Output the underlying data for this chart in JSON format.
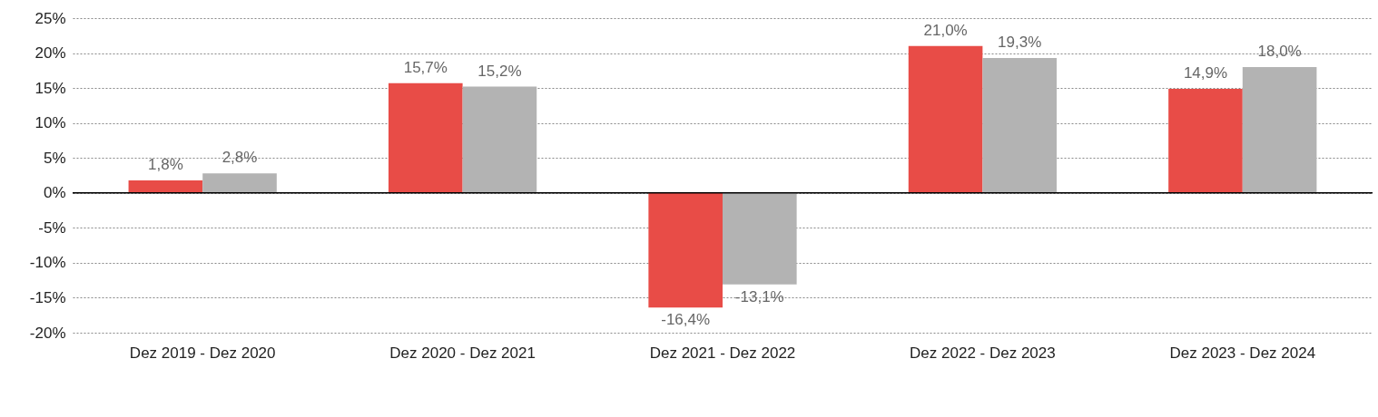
{
  "chart_data": {
    "type": "bar",
    "categories": [
      "Dez 2019 - Dez 2020",
      "Dez 2020 - Dez 2021",
      "Dez 2021 - Dez 2022",
      "Dez 2022 - Dez 2023",
      "Dez 2023 - Dez 2024"
    ],
    "series": [
      {
        "color": "#e84c47",
        "values": [
          1.8,
          15.7,
          -16.4,
          21.0,
          14.9
        ],
        "value_labels": [
          "1,8%",
          "15,7%",
          "-16,4%",
          "21,0%",
          "14,9%"
        ]
      },
      {
        "color": "#b3b3b3",
        "values": [
          2.8,
          15.2,
          -13.1,
          19.3,
          18.0
        ],
        "value_labels": [
          "2,8%",
          "15,2%",
          "-13,1%",
          "19,3%",
          "18,0%"
        ]
      }
    ],
    "ylim": [
      -20,
      25
    ],
    "yticks": [
      {
        "value": -20,
        "label": "-20%"
      },
      {
        "value": -15,
        "label": "-15%"
      },
      {
        "value": -10,
        "label": "-10%"
      },
      {
        "value": -5,
        "label": "-5%"
      },
      {
        "value": 0,
        "label": "0%"
      },
      {
        "value": 5,
        "label": "5%"
      },
      {
        "value": 10,
        "label": "10%"
      },
      {
        "value": 15,
        "label": "15%"
      },
      {
        "value": 20,
        "label": "20%"
      },
      {
        "value": 25,
        "label": "25%"
      }
    ],
    "grid": "y"
  }
}
